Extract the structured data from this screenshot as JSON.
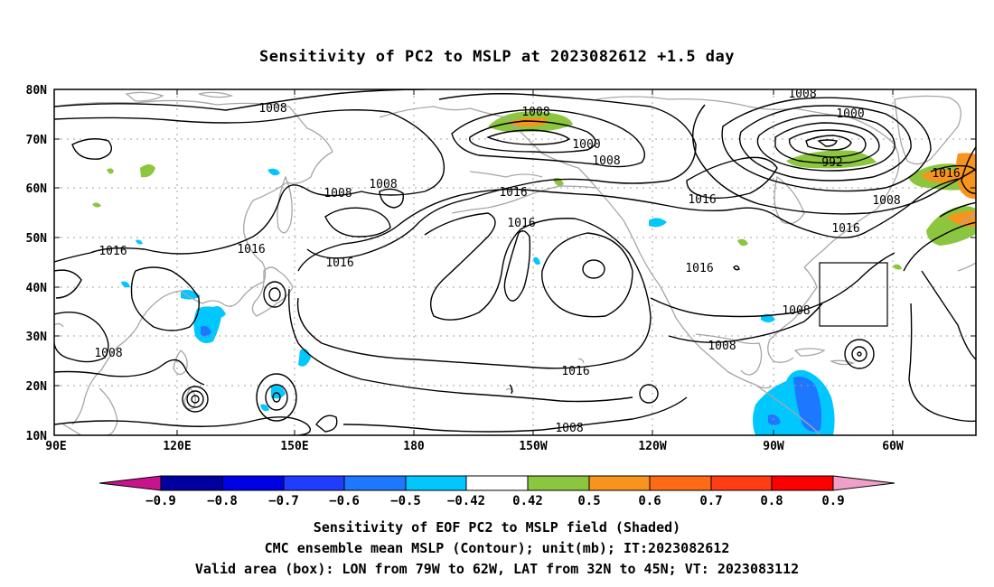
{
  "title": "Sensitivity of PC2 to MSLP at 2023082612 +1.5 day",
  "map": {
    "lat_labels": [
      "80N",
      "70N",
      "60N",
      "50N",
      "40N",
      "30N",
      "20N",
      "10N"
    ],
    "lon_labels": [
      "90E",
      "120E",
      "150E",
      "180",
      "150W",
      "120W",
      "90W",
      "60W"
    ],
    "contour_labels": [
      "1008",
      "1008",
      "1008",
      "1008",
      "1000",
      "1008",
      "1000",
      "992",
      "1016",
      "1008",
      "1016",
      "1016",
      "1016",
      "1016",
      "1016",
      "1016",
      "1016",
      "1008",
      "1008",
      "1008",
      "1008",
      "1008",
      "1016"
    ],
    "valid_box": {
      "lon_from": "79W",
      "lon_to": "62W",
      "lat_from": "32N",
      "lat_to": "45N"
    },
    "colors": {
      "coast": "#a6a6a6",
      "contour": "#000000",
      "pos_042_05": "#8cc63f",
      "pos_05_06": "#f7941d",
      "neg_042_05": "#00c8ff"
    }
  },
  "colorbar": {
    "labels": [
      "−0.9",
      "−0.8",
      "−0.7",
      "−0.6",
      "−0.5",
      "−0.42",
      "0.42",
      "0.5",
      "0.6",
      "0.7",
      "0.8",
      "0.9"
    ],
    "colors": [
      "#0000a0",
      "#0000e6",
      "#1f3cff",
      "#1e78ff",
      "#00c8ff",
      "#ffffff",
      "#8cc63f",
      "#f7941d",
      "#ff6a14",
      "#ff3c14",
      "#ff0000"
    ],
    "left_arrow_color": "#c8148c",
    "right_arrow_color": "#f0a0c8"
  },
  "footer": {
    "line1": "Sensitivity of EOF PC2 to MSLP field (Shaded)",
    "line2": "CMC ensemble mean MSLP (Contour); unit(mb); IT:2023082612",
    "line3": "Valid area (box): LON from 79W to 62W, LAT from 32N to 45N; VT: 2023083112"
  }
}
